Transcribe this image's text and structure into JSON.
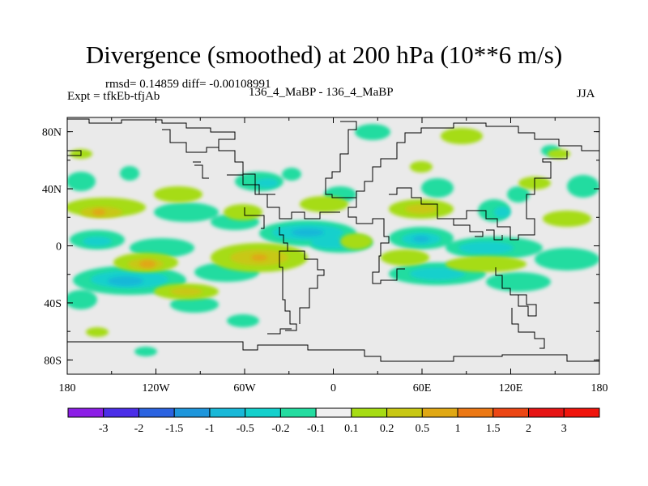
{
  "title": "Divergence (smoothed) at 200 hPa (10**6 m/s)",
  "stats": "rmsd= 0.14859 diff= -0.00108991",
  "expt": "Expt = tfkEb-tfjAb",
  "experiments": "136_4_MaBP - 136_4_MaBP",
  "season": "JJA",
  "lat_ticks": [
    "80N",
    "40N",
    "0",
    "40S",
    "80S"
  ],
  "lon_ticks": [
    "180",
    "120W",
    "60W",
    "0",
    "60E",
    "120E",
    "180"
  ],
  "colorbar": {
    "labels": [
      "-3",
      "-2",
      "-1.5",
      "-1",
      "-0.5",
      "-0.2",
      "-0.1",
      "0.1",
      "0.2",
      "0.5",
      "1",
      "1.5",
      "2",
      "3"
    ],
    "colors": [
      "#8c1ee6",
      "#4b2ee8",
      "#2b63e0",
      "#1e96dc",
      "#19b8d8",
      "#14d0cc",
      "#24dca0",
      "#f0f0f0",
      "#a6dc14",
      "#c8c814",
      "#e0a814",
      "#ec7814",
      "#ec4614",
      "#e61414",
      "#f0140c"
    ]
  }
}
